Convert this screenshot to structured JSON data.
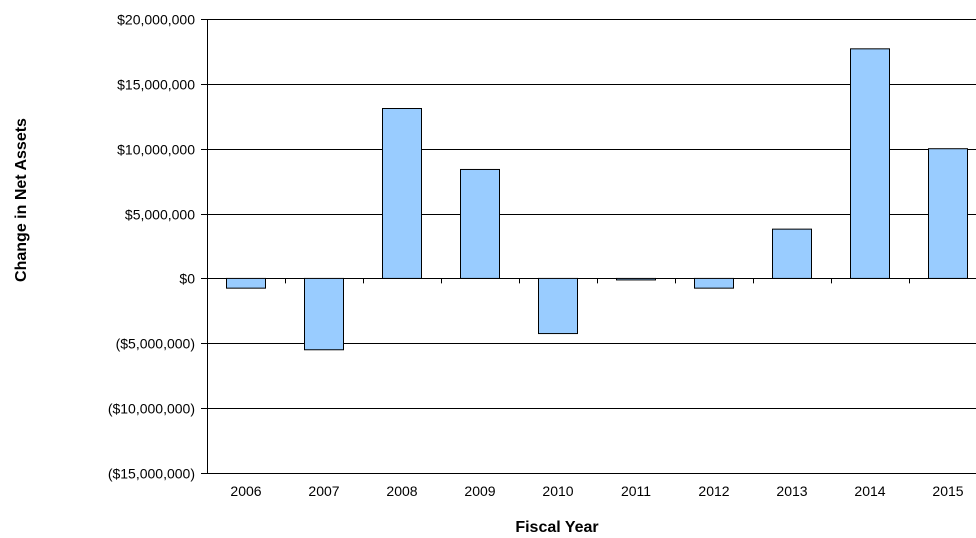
{
  "chart_data": {
    "type": "bar",
    "title": "",
    "xlabel": "Fiscal  Year",
    "ylabel": "Change in Net Assets",
    "ylim": [
      -15000000,
      20000000
    ],
    "yticks": [
      20000000,
      15000000,
      10000000,
      5000000,
      0,
      -5000000,
      -10000000,
      -15000000
    ],
    "ytick_labels": [
      "$20,000,000",
      "$15,000,000",
      "$10,000,000",
      "$5,000,000",
      "$0",
      "($5,000,000)",
      "($10,000,000)",
      "($15,000,000)"
    ],
    "categories": [
      "2006",
      "2007",
      "2008",
      "2009",
      "2010",
      "2011",
      "2012",
      "2013",
      "2014",
      "2015"
    ],
    "values": [
      -750000,
      -5500000,
      13100000,
      8400000,
      -4250000,
      -100000,
      -750000,
      3800000,
      17700000,
      10000000
    ],
    "grid": true,
    "legend": "none",
    "colors": {
      "bar_fill": "#99ccff",
      "bar_stroke": "#000000",
      "grid": "#000000",
      "background": "#ffffff"
    }
  }
}
